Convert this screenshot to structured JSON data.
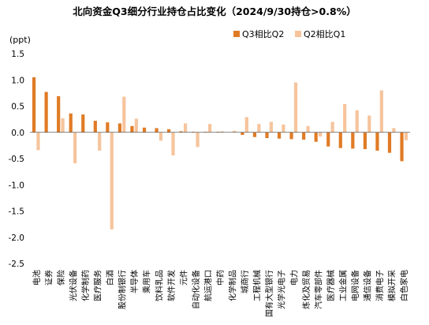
{
  "chart_data": {
    "type": "bar",
    "title": "北向资金Q3细分行业持仓占比变化（2024/9/30持仓>0.8%）",
    "unit": "(ppt)",
    "ylim": [
      -2.5,
      1.5
    ],
    "yticks": [
      "1.5",
      "1.0",
      "0.5",
      "0.0",
      "-0.5",
      "-1.0",
      "-1.5",
      "-2.0",
      "-2.5"
    ],
    "legend_position": "top-right",
    "categories": [
      "电池",
      "证券",
      "保险",
      "光伏设备",
      "化学制药",
      "医疗服务",
      "白酒",
      "股份制银行",
      "半导体",
      "乘用车",
      "饮料乳品",
      "软件开发",
      "元件",
      "自动化设备",
      "航运港口",
      "中药",
      "化学制品",
      "城商行",
      "工程机械",
      "国有大型银行",
      "光学光电子",
      "电力",
      "炼化及贸易",
      "汽车零部件",
      "医疗器械",
      "工业金属",
      "电网设备",
      "通信设备",
      "消费电子",
      "模拟开采",
      "白色家电"
    ],
    "series": [
      {
        "name": "Q3相比Q2",
        "color": "#E07B25",
        "values": [
          1.05,
          0.77,
          0.69,
          0.36,
          0.34,
          0.22,
          0.19,
          0.17,
          0.12,
          0.09,
          0.08,
          0.06,
          0.02,
          0.01,
          0.01,
          0.01,
          0.0,
          -0.05,
          -0.09,
          -0.11,
          -0.12,
          -0.13,
          -0.14,
          -0.18,
          -0.27,
          -0.3,
          -0.31,
          -0.32,
          -0.35,
          -0.39,
          -0.55
        ]
      },
      {
        "name": "Q2相比Q1",
        "color": "#F6C49C",
        "values": [
          -0.34,
          0.0,
          0.27,
          -0.59,
          0.0,
          -0.35,
          -1.85,
          0.68,
          0.26,
          0.0,
          -0.16,
          -0.44,
          0.17,
          -0.28,
          0.16,
          0.02,
          0.03,
          0.29,
          0.16,
          0.2,
          0.15,
          0.95,
          0.12,
          -0.08,
          0.2,
          0.54,
          0.42,
          0.32,
          0.8,
          0.08,
          -0.15
        ]
      }
    ]
  }
}
